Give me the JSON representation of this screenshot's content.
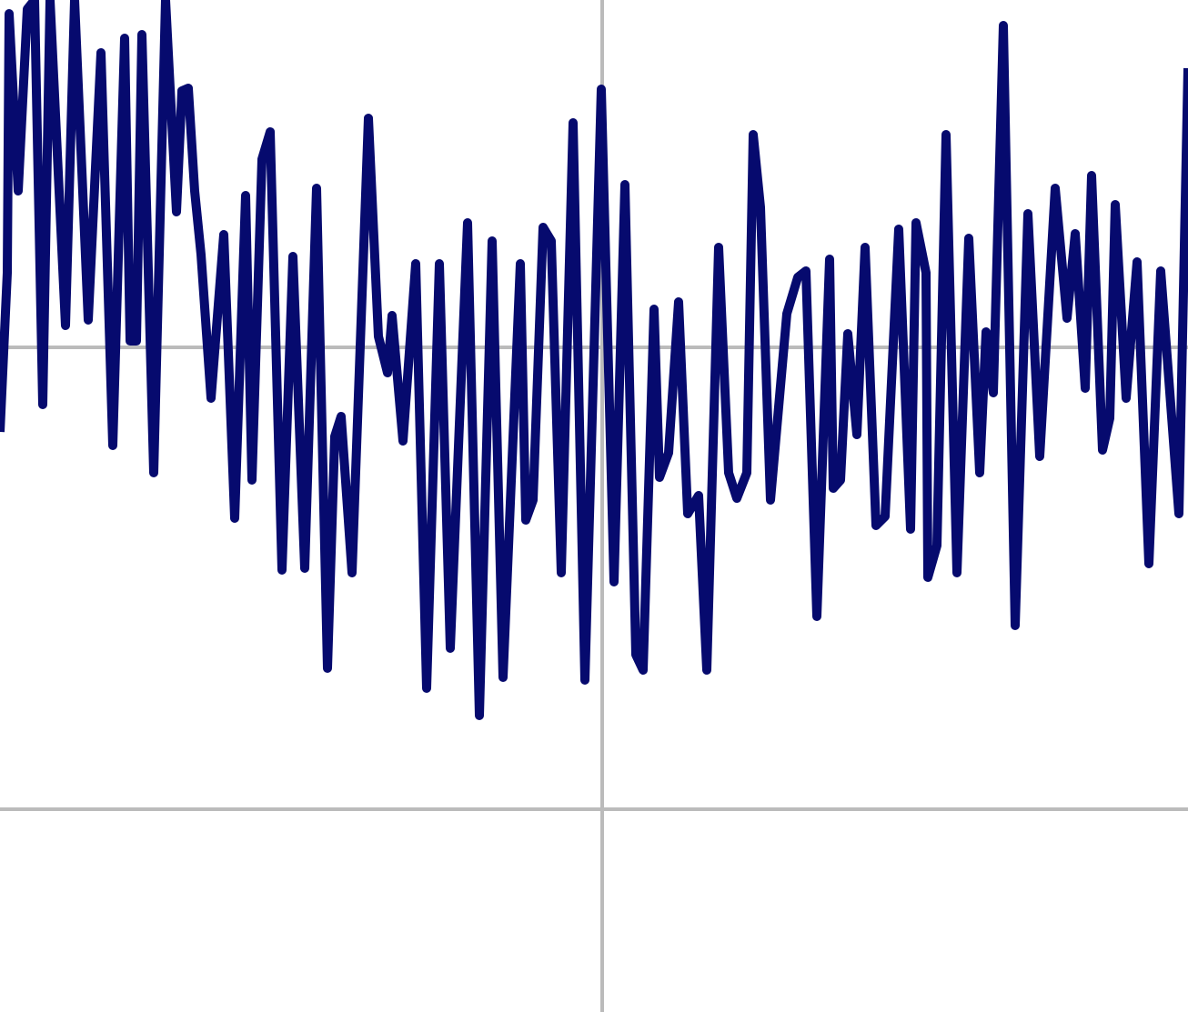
{
  "chart_data": {
    "type": "line",
    "x": [
      0,
      8,
      10,
      20,
      30,
      38,
      47,
      55,
      72,
      82,
      97,
      111,
      124,
      137,
      143,
      150,
      156,
      169,
      182,
      194,
      200,
      207,
      214,
      221,
      232,
      246,
      258,
      270,
      277,
      288,
      297,
      310,
      322,
      335,
      348,
      360,
      368,
      375,
      387,
      405,
      416,
      426,
      431,
      443,
      457,
      469,
      483,
      495,
      514,
      527,
      541,
      553,
      572,
      578,
      586,
      597,
      606,
      617,
      630,
      643,
      661,
      675,
      687,
      699,
      707,
      719,
      725,
      735,
      746,
      756,
      768,
      777,
      790,
      801,
      810,
      821,
      828,
      836,
      847,
      865,
      877,
      886,
      898,
      912,
      916,
      924,
      932,
      942,
      951,
      963,
      973,
      988,
      1001,
      1007,
      1018,
      1020,
      1030,
      1040,
      1052,
      1065,
      1077,
      1084,
      1092,
      1103,
      1116,
      1130,
      1143,
      1160,
      1173,
      1182,
      1193,
      1200,
      1212,
      1220,
      1226,
      1238,
      1250,
      1263,
      1276,
      1296,
      1306
    ],
    "series": [
      {
        "color": "#060a6e",
        "values": [
          415,
          590,
          875,
          680,
          880,
          890,
          445,
          890,
          532,
          890,
          538,
          832,
          400,
          848,
          515,
          515,
          852,
          370,
          890,
          657,
          790,
          793,
          680,
          610,
          452,
          632,
          320,
          675,
          362,
          715,
          745,
          263,
          608,
          265,
          683,
          155,
          410,
          432,
          260,
          760,
          520,
          480,
          543,
          405,
          600,
          133,
          600,
          177,
          645,
          103,
          625,
          145,
          600,
          318,
          340,
          640,
          625,
          260,
          755,
          142,
          792,
          250,
          687,
          170,
          153,
          550,
          365,
          392,
          558,
          325,
          345,
          153,
          618,
          370,
          342,
          370,
          742,
          662,
          340,
          545,
          585,
          592,
          212,
          605,
          353,
          362,
          523,
          412,
          618,
          312,
          322,
          638,
          308,
          645,
          590,
          255,
          290,
          742,
          260,
          628,
          370,
          525,
          458,
          862,
          202,
          655,
          388,
          683,
          540,
          633,
          463,
          697,
          395,
          430,
          665,
          452,
          602,
          270,
          592,
          325,
          815
        ]
      }
    ],
    "xlim": [
      0,
      1306
    ],
    "ylim": [
      -223,
      890
    ],
    "xticks": [
      662
    ],
    "yticks": [
      0,
      508
    ],
    "grid": true
  }
}
